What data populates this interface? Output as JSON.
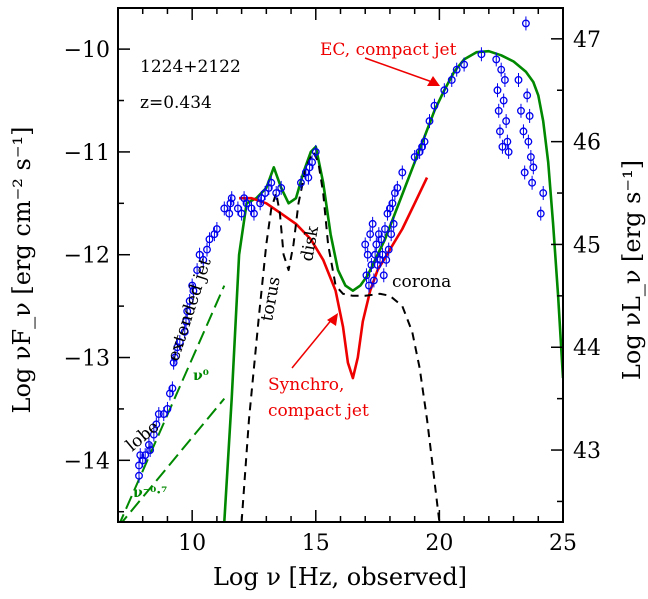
{
  "chart_data": {
    "type": "scatter",
    "title": "",
    "xlabel": "Log ν  [Hz, observed]",
    "ylabel": "Log νF_ν  [erg cm⁻² s⁻¹]",
    "y2label": "Log νL_ν  [erg s⁻¹]",
    "xlim": [
      7,
      25
    ],
    "ylim": [
      -14.6,
      -9.6
    ],
    "y2lim": [
      42.3,
      47.3
    ],
    "x_ticks": [
      10,
      15,
      20,
      25
    ],
    "y_ticks": [
      -14,
      -13,
      -12,
      -11,
      -10
    ],
    "y2_ticks": [
      43,
      44,
      45,
      46,
      47
    ],
    "grid": false,
    "colors": {
      "data": "#0000ee",
      "total_model": "#008800",
      "synchrotron": "#ee0000",
      "ec": "#ee0000",
      "thermal": "#000000",
      "lobe": "#008800"
    },
    "annotations": {
      "source_name": "1224+2122",
      "redshift": "z=0.434",
      "ec_label": "EC, compact jet",
      "synchro_label_1": "Synchro,",
      "synchro_label_2": "compact jet",
      "corona": "corona",
      "torus": "torus",
      "disk": "disk",
      "extended_jet": "extended jet",
      "lobe": "lobe",
      "nu0": "ν⁰",
      "nu07": "ν⁻⁰·⁷"
    },
    "series": [
      {
        "style": "solid",
        "color": "#008800",
        "x": [
          11.3,
          11.6,
          11.9,
          12.2,
          12.6,
          13.0,
          13.3,
          13.6,
          13.9,
          14.2,
          14.5,
          14.8,
          15.0,
          15.3,
          15.6,
          15.9,
          16.2,
          16.5,
          16.8,
          17.1,
          17.4,
          17.8,
          18.2,
          18.6,
          19.0,
          19.4,
          19.8,
          20.2,
          20.6,
          21.0,
          21.5,
          22.0,
          22.5,
          23.0,
          23.5,
          23.8,
          24.0,
          24.2,
          24.4,
          24.6,
          24.8,
          25.0
        ],
        "y": [
          -14.6,
          -13.4,
          -12.0,
          -11.5,
          -11.45,
          -11.35,
          -11.15,
          -11.35,
          -11.5,
          -11.45,
          -11.2,
          -11.0,
          -10.95,
          -11.3,
          -11.8,
          -12.15,
          -12.3,
          -12.35,
          -12.3,
          -12.2,
          -12.05,
          -11.85,
          -11.6,
          -11.35,
          -11.1,
          -10.85,
          -10.6,
          -10.4,
          -10.22,
          -10.1,
          -10.03,
          -10.02,
          -10.06,
          -10.12,
          -10.22,
          -10.32,
          -10.45,
          -10.7,
          -11.1,
          -11.7,
          -12.4,
          -13.2
        ]
      },
      {
        "style": "solid",
        "color": "#ee0000",
        "x": [
          11.9,
          12.4,
          13.0,
          13.6,
          14.2,
          14.8,
          15.3,
          15.8,
          16.1,
          16.3,
          16.5,
          16.7,
          16.9,
          17.2,
          17.5,
          18.0,
          18.5,
          19.0,
          19.5
        ],
        "y": [
          -11.45,
          -11.45,
          -11.5,
          -11.6,
          -11.7,
          -11.85,
          -12.05,
          -12.35,
          -12.7,
          -13.05,
          -13.2,
          -13.0,
          -12.65,
          -12.35,
          -12.15,
          -11.95,
          -11.75,
          -11.5,
          -11.25
        ]
      },
      {
        "style": "dashed",
        "color": "#000000",
        "x": [
          12.0,
          12.3,
          12.7,
          13.0,
          13.2,
          13.4,
          13.55,
          13.7,
          13.9,
          14.1,
          14.3,
          14.6,
          14.9,
          15.1,
          15.3,
          15.5,
          15.8,
          16.1,
          16.5,
          17.0,
          17.6,
          18.0,
          18.5,
          18.9,
          19.2,
          19.5,
          19.7,
          19.9,
          20.0
        ],
        "y": [
          -14.6,
          -13.6,
          -12.6,
          -11.9,
          -11.55,
          -11.4,
          -11.6,
          -12.0,
          -12.15,
          -11.9,
          -11.5,
          -11.15,
          -11.0,
          -11.1,
          -11.4,
          -11.9,
          -12.3,
          -12.38,
          -12.4,
          -12.4,
          -12.38,
          -12.4,
          -12.5,
          -12.75,
          -13.1,
          -13.6,
          -14.0,
          -14.4,
          -14.6
        ]
      },
      {
        "style": "dashed",
        "color": "#008800",
        "x": [
          7.0,
          11.3
        ],
        "y": [
          -14.65,
          -12.3
        ]
      },
      {
        "style": "dashed",
        "color": "#008800",
        "x": [
          7.0,
          11.3
        ],
        "y": [
          -14.65,
          -13.4
        ]
      },
      {
        "style": "points",
        "color": "#0000ee",
        "x": [
          7.85,
          7.85,
          7.9,
          8.0,
          8.1,
          8.25,
          8.3,
          8.45,
          8.55,
          8.65,
          8.85,
          9.0,
          9.1,
          9.2,
          9.25,
          9.3,
          9.4,
          9.5,
          9.7,
          9.75,
          9.8,
          9.9,
          10.0,
          10.05,
          10.2,
          10.3,
          10.45,
          10.6,
          10.7,
          10.9,
          11.0,
          11.3,
          11.5,
          11.55,
          11.6,
          11.85,
          12.0,
          12.1,
          12.2,
          12.4,
          12.5,
          12.75,
          12.8,
          12.95,
          13.1,
          13.2,
          13.4,
          13.6,
          14.4,
          14.6,
          14.7,
          14.75,
          14.85,
          15.0,
          17.0,
          17.05,
          17.1,
          17.15,
          17.2,
          17.25,
          17.3,
          17.35,
          17.4,
          17.45,
          17.5,
          17.55,
          17.6,
          17.65,
          17.7,
          17.75,
          17.8,
          17.85,
          17.9,
          17.95,
          18.0,
          18.05,
          18.1,
          18.15,
          18.2,
          18.3,
          18.5,
          19.0,
          19.2,
          19.3,
          19.4,
          19.6,
          19.8,
          20.2,
          20.5,
          20.7,
          21.0,
          21.7,
          22.3,
          22.35,
          22.4,
          22.45,
          22.5,
          22.55,
          22.6,
          22.65,
          22.7,
          22.75,
          22.8,
          23.2,
          23.3,
          23.4,
          23.45,
          23.5,
          23.55,
          23.6,
          23.65,
          23.7,
          23.75,
          23.8,
          24.1,
          24.2
        ],
        "y": [
          -14.05,
          -14.15,
          -13.95,
          -14.0,
          -13.95,
          -13.85,
          -13.9,
          -13.75,
          -13.65,
          -13.55,
          -13.55,
          -13.5,
          -13.35,
          -13.3,
          -13.05,
          -13.0,
          -12.9,
          -12.85,
          -12.75,
          -12.65,
          -12.55,
          -12.45,
          -12.3,
          -12.35,
          -12.15,
          -12.0,
          -12.05,
          -11.95,
          -11.85,
          -11.8,
          -11.75,
          -11.55,
          -11.6,
          -11.5,
          -11.45,
          -11.55,
          -11.6,
          -11.45,
          -11.5,
          -11.55,
          -11.6,
          -11.5,
          -11.45,
          -11.4,
          -11.35,
          -11.3,
          -11.4,
          -11.35,
          -11.3,
          -11.2,
          -11.25,
          -11.15,
          -11.1,
          -11.0,
          -11.9,
          -12.2,
          -12.0,
          -12.3,
          -11.8,
          -12.1,
          -11.7,
          -12.25,
          -12.0,
          -11.9,
          -12.1,
          -11.8,
          -12.05,
          -11.85,
          -12.0,
          -12.2,
          -11.75,
          -12.05,
          -11.6,
          -11.95,
          -11.55,
          -11.8,
          -11.5,
          -11.7,
          -11.4,
          -11.35,
          -11.2,
          -11.05,
          -11.0,
          -10.95,
          -10.9,
          -10.7,
          -10.55,
          -10.4,
          -10.3,
          -10.2,
          -10.15,
          -10.05,
          -10.1,
          -10.4,
          -10.6,
          -10.8,
          -10.2,
          -10.95,
          -10.5,
          -10.3,
          -10.7,
          -10.9,
          -11.0,
          -10.3,
          -10.6,
          -10.8,
          -11.2,
          -9.75,
          -10.45,
          -10.9,
          -10.65,
          -11.05,
          -11.3,
          -11.15,
          -11.6,
          -11.4
        ]
      }
    ]
  }
}
